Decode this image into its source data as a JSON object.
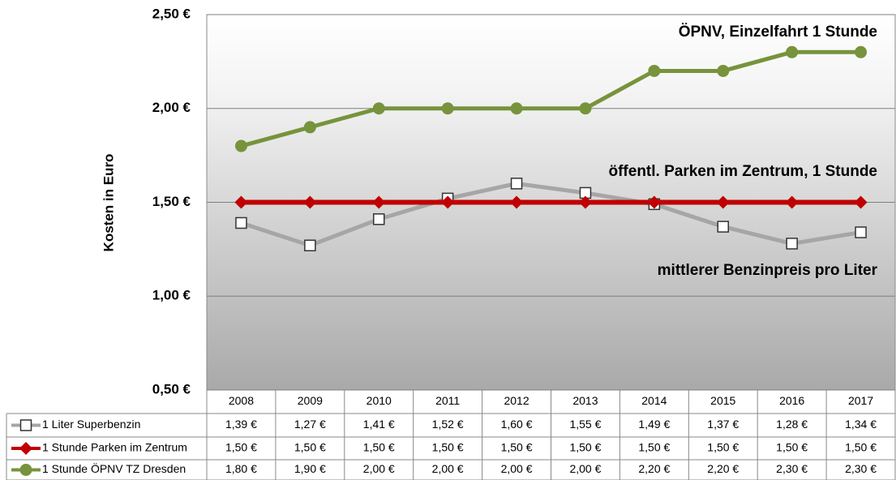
{
  "chart_data": {
    "type": "line",
    "y_axis_label": "Kosten in Euro",
    "categories": [
      "2008",
      "2009",
      "2010",
      "2011",
      "2012",
      "2013",
      "2014",
      "2015",
      "2016",
      "2017"
    ],
    "series": [
      {
        "name": "1 Liter Superbenzin",
        "color": "#a6a6a6",
        "marker": "square",
        "values": [
          1.39,
          1.27,
          1.41,
          1.52,
          1.6,
          1.55,
          1.49,
          1.37,
          1.28,
          1.34
        ],
        "value_labels": [
          "1,39 €",
          "1,27 €",
          "1,41 €",
          "1,52 €",
          "1,60 €",
          "1,55 €",
          "1,49 €",
          "1,37 €",
          "1,28 €",
          "1,34 €"
        ]
      },
      {
        "name": "1 Stunde Parken im Zentrum",
        "color": "#c00000",
        "marker": "diamond",
        "values": [
          1.5,
          1.5,
          1.5,
          1.5,
          1.5,
          1.5,
          1.5,
          1.5,
          1.5,
          1.5
        ],
        "value_labels": [
          "1,50 €",
          "1,50 €",
          "1,50 €",
          "1,50 €",
          "1,50 €",
          "1,50 €",
          "1,50 €",
          "1,50 €",
          "1,50 €",
          "1,50 €"
        ]
      },
      {
        "name": "1 Stunde ÖPNV TZ Dresden",
        "color": "#77933c",
        "marker": "circle",
        "values": [
          1.8,
          1.9,
          2.0,
          2.0,
          2.0,
          2.0,
          2.2,
          2.2,
          2.3,
          2.3
        ],
        "value_labels": [
          "1,80 €",
          "1,90 €",
          "2,00 €",
          "2,00 €",
          "2,00 €",
          "2,00 €",
          "2,20 €",
          "2,20 €",
          "2,30 €",
          "2,30 €"
        ]
      }
    ],
    "annotations": [
      "ÖPNV, Einzelfahrt 1 Stunde",
      "öffentl. Parken im Zentrum, 1 Stunde",
      "mittlerer Benzinpreis pro Liter"
    ],
    "ylim": [
      0.5,
      2.5
    ],
    "yticks": [
      {
        "value": 0.5,
        "label": "0,50 €"
      },
      {
        "value": 1.0,
        "label": "1,00 €"
      },
      {
        "value": 1.5,
        "label": "1,50 €"
      },
      {
        "value": 2.0,
        "label": "2,00 €"
      },
      {
        "value": 2.5,
        "label": "2,50 €"
      }
    ],
    "grid": true
  }
}
